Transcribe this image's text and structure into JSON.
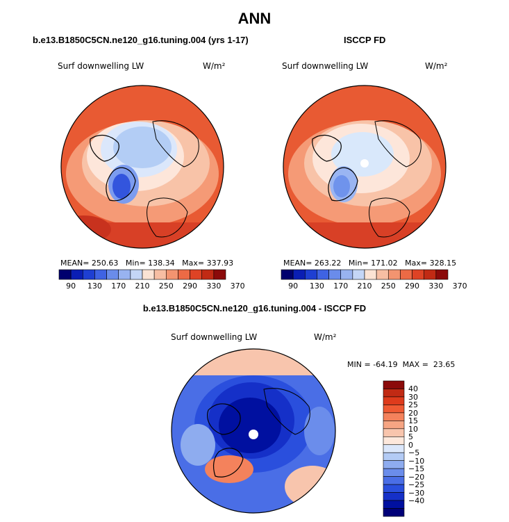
{
  "page_title": "ANN",
  "panels": [
    {
      "case": "b.e13.B1850C5CN.ne120_g16.tuning.004 (yrs 1-17)",
      "label": "Surf downwelling LW",
      "units": "W/m²",
      "stats": {
        "mean_label": "MEAN=",
        "mean": "250.63",
        "min_label": "Min=",
        "min": "138.34",
        "max_label": "Max=",
        "max": "337.93"
      },
      "colorbar_ticks": [
        "90",
        "130",
        "170",
        "210",
        "250",
        "290",
        "330",
        "370"
      ],
      "colors": {
        "ocean_south": "#e04a2a",
        "mid": "#f6a583",
        "arctic": "#b3cdf5",
        "baffin": "#3355dd"
      }
    },
    {
      "case": "ISCCP FD",
      "label": "Surf downwelling LW",
      "units": "W/m²",
      "stats": {
        "mean_label": "MEAN=",
        "mean": "263.22",
        "min_label": "Min=",
        "min": "171.02",
        "max_label": "Max=",
        "max": "328.15"
      },
      "colorbar_ticks": [
        "90",
        "130",
        "170",
        "210",
        "250",
        "290",
        "330",
        "370"
      ],
      "colors": {
        "ocean_south": "#e04a2a",
        "mid": "#f8b79a",
        "arctic": "#d9e8fb",
        "baffin": "#6f93ec"
      }
    }
  ],
  "difference": {
    "case": "b.e13.B1850C5CN.ne120_g16.tuning.004 - ISCCP FD",
    "label": "Surf downwelling LW",
    "units": "W/m²",
    "stats": {
      "min_label": "MIN =",
      "min": "-64.19",
      "max_label": "MAX =",
      "max": "23.65"
    },
    "colorbar_ticks": [
      "40",
      "30",
      "25",
      "20",
      "15",
      "10",
      "5",
      "0",
      "−5",
      "−10",
      "−15",
      "−20",
      "−25",
      "−30",
      "−40"
    ]
  },
  "colorbar_colors": [
    "#00006e",
    "#0a1eb4",
    "#1e3fd2",
    "#3f63e3",
    "#6a8cea",
    "#98b3f0",
    "#c4d6f6",
    "#fbe3d4",
    "#f7bea3",
    "#f39470",
    "#ec6a45",
    "#de4325",
    "#c12a14",
    "#8b0a0a"
  ],
  "diff_colorbar_colors": [
    "#8b0a0a",
    "#c12a14",
    "#de3b1c",
    "#ef5a33",
    "#f4825c",
    "#f6a583",
    "#f8c5ad",
    "#fde8dc",
    "#dbe7fb",
    "#b3cbf5",
    "#8eacef",
    "#6b8deb",
    "#4a6ee6",
    "#2a4fdd",
    "#1530c8",
    "#0010a0",
    "#000078"
  ]
}
